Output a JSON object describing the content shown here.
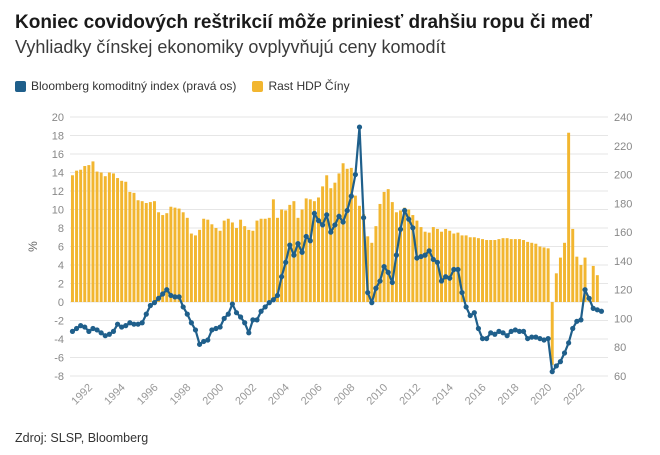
{
  "title": "Koniec covidových reštrikcií môže priniesť drahšiu ropu či meď",
  "subtitle": "Vyhliadky čínskej ekonomiky ovplyvňujú ceny komodít",
  "source": "Zdroj: SLSP, Bloomberg",
  "colors": {
    "index": "#1f5f8b",
    "gdp": "#f2b630",
    "grid": "#e6e6e6",
    "tick": "#888888"
  },
  "chart_data": {
    "type": "bar+line",
    "title": "Koniec covidových reštrikcií môže priniesť drahšiu ropu či meď",
    "subtitle": "Vyhliadky čínskej ekonomiky ovplyvňujú ceny komodít",
    "ylabel_left": "%",
    "ylim_left": [
      -8,
      20
    ],
    "yticks_left": [
      -8,
      -6,
      -4,
      -2,
      0,
      2,
      4,
      6,
      8,
      10,
      12,
      14,
      16,
      18,
      20
    ],
    "ylim_right": [
      60,
      240
    ],
    "yticks_right": [
      60,
      80,
      100,
      120,
      140,
      160,
      180,
      200,
      220,
      240
    ],
    "xlim": [
      1990.6,
      2023.4
    ],
    "xticks": [
      "1992",
      "1994",
      "1996",
      "1998",
      "2000",
      "2002",
      "2004",
      "2006",
      "2008",
      "2010",
      "2012",
      "2014",
      "2016",
      "2018",
      "2020",
      "2022"
    ],
    "grid": true,
    "legend_position": "top-left",
    "series": [
      {
        "name": "Bloomberg komoditný index (pravá os)",
        "type": "line",
        "axis": "right",
        "points": [
          [
            1990.75,
            91
          ],
          [
            1991.0,
            93
          ],
          [
            1991.25,
            95
          ],
          [
            1991.5,
            94
          ],
          [
            1991.75,
            91
          ],
          [
            1992.0,
            93
          ],
          [
            1992.25,
            92
          ],
          [
            1992.5,
            90
          ],
          [
            1992.75,
            88
          ],
          [
            1993.0,
            89
          ],
          [
            1993.25,
            91
          ],
          [
            1993.5,
            96
          ],
          [
            1993.75,
            94
          ],
          [
            1994.0,
            95
          ],
          [
            1994.25,
            97
          ],
          [
            1994.5,
            96
          ],
          [
            1994.75,
            96
          ],
          [
            1995.0,
            97
          ],
          [
            1995.25,
            103
          ],
          [
            1995.5,
            109
          ],
          [
            1995.75,
            111
          ],
          [
            1996.0,
            114
          ],
          [
            1996.25,
            117
          ],
          [
            1996.5,
            120
          ],
          [
            1996.75,
            116
          ],
          [
            1997.0,
            115
          ],
          [
            1997.25,
            115
          ],
          [
            1997.5,
            108
          ],
          [
            1997.75,
            103
          ],
          [
            1998.0,
            97
          ],
          [
            1998.25,
            92
          ],
          [
            1998.5,
            82
          ],
          [
            1998.75,
            84
          ],
          [
            1999.0,
            85
          ],
          [
            1999.25,
            92
          ],
          [
            1999.5,
            93
          ],
          [
            1999.75,
            94
          ],
          [
            2000.0,
            100
          ],
          [
            2000.25,
            103
          ],
          [
            2000.5,
            110
          ],
          [
            2000.75,
            104
          ],
          [
            2001.0,
            101
          ],
          [
            2001.25,
            97
          ],
          [
            2001.5,
            90
          ],
          [
            2001.75,
            99
          ],
          [
            2002.0,
            99
          ],
          [
            2002.25,
            105
          ],
          [
            2002.5,
            108
          ],
          [
            2002.75,
            111
          ],
          [
            2003.0,
            113
          ],
          [
            2003.25,
            116
          ],
          [
            2003.5,
            129
          ],
          [
            2003.75,
            139
          ],
          [
            2004.0,
            151
          ],
          [
            2004.25,
            144
          ],
          [
            2004.5,
            152
          ],
          [
            2004.75,
            146
          ],
          [
            2005.0,
            157
          ],
          [
            2005.25,
            154
          ],
          [
            2005.5,
            173
          ],
          [
            2005.75,
            168
          ],
          [
            2006.0,
            165
          ],
          [
            2006.25,
            172
          ],
          [
            2006.5,
            160
          ],
          [
            2006.75,
            165
          ],
          [
            2007.0,
            171
          ],
          [
            2007.25,
            167
          ],
          [
            2007.5,
            175
          ],
          [
            2007.75,
            185
          ],
          [
            2008.0,
            200
          ],
          [
            2008.25,
            233
          ],
          [
            2008.5,
            170
          ],
          [
            2008.75,
            118
          ],
          [
            2009.0,
            111
          ],
          [
            2009.25,
            121
          ],
          [
            2009.5,
            126
          ],
          [
            2009.75,
            136
          ],
          [
            2010.0,
            132
          ],
          [
            2010.25,
            125
          ],
          [
            2010.5,
            144
          ],
          [
            2010.75,
            162
          ],
          [
            2011.0,
            175
          ],
          [
            2011.25,
            169
          ],
          [
            2011.5,
            163
          ],
          [
            2011.75,
            142
          ],
          [
            2012.0,
            143
          ],
          [
            2012.25,
            144
          ],
          [
            2012.5,
            147
          ],
          [
            2012.75,
            141
          ],
          [
            2013.0,
            139
          ],
          [
            2013.25,
            126
          ],
          [
            2013.5,
            129
          ],
          [
            2013.75,
            128
          ],
          [
            2014.0,
            134
          ],
          [
            2014.25,
            134
          ],
          [
            2014.5,
            118
          ],
          [
            2014.75,
            108
          ],
          [
            2015.0,
            102
          ],
          [
            2015.25,
            104
          ],
          [
            2015.5,
            93
          ],
          [
            2015.75,
            86
          ],
          [
            2016.0,
            86
          ],
          [
            2016.25,
            90
          ],
          [
            2016.5,
            89
          ],
          [
            2016.75,
            91
          ],
          [
            2017.0,
            90
          ],
          [
            2017.25,
            88
          ],
          [
            2017.5,
            91
          ],
          [
            2017.75,
            92
          ],
          [
            2018.0,
            91
          ],
          [
            2018.25,
            91
          ],
          [
            2018.5,
            86
          ],
          [
            2018.75,
            87
          ],
          [
            2019.0,
            87
          ],
          [
            2019.25,
            86
          ],
          [
            2019.5,
            85
          ],
          [
            2019.75,
            86
          ],
          [
            2020.0,
            63
          ],
          [
            2020.25,
            67
          ],
          [
            2020.5,
            70
          ],
          [
            2020.75,
            76
          ],
          [
            2021.0,
            83
          ],
          [
            2021.25,
            93
          ],
          [
            2021.5,
            98
          ],
          [
            2021.75,
            99
          ],
          [
            2022.0,
            120
          ],
          [
            2022.25,
            114
          ],
          [
            2022.5,
            107
          ],
          [
            2022.75,
            106
          ],
          [
            2023.0,
            105
          ]
        ]
      },
      {
        "name": "Rast HDP Číny",
        "type": "bar",
        "axis": "left",
        "points": [
          [
            1990.75,
            13.7
          ],
          [
            1991.0,
            14.2
          ],
          [
            1991.25,
            14.3
          ],
          [
            1991.5,
            14.7
          ],
          [
            1991.75,
            14.8
          ],
          [
            1992.0,
            15.2
          ],
          [
            1992.25,
            14.1
          ],
          [
            1992.5,
            14.0
          ],
          [
            1992.75,
            13.6
          ],
          [
            1993.0,
            14.0
          ],
          [
            1993.25,
            13.9
          ],
          [
            1993.5,
            13.4
          ],
          [
            1993.75,
            13.1
          ],
          [
            1994.0,
            13.0
          ],
          [
            1994.25,
            11.9
          ],
          [
            1994.5,
            11.8
          ],
          [
            1994.75,
            11.0
          ],
          [
            1995.0,
            10.9
          ],
          [
            1995.25,
            10.7
          ],
          [
            1995.5,
            10.8
          ],
          [
            1995.75,
            10.9
          ],
          [
            1996.0,
            9.7
          ],
          [
            1996.25,
            9.4
          ],
          [
            1996.5,
            9.6
          ],
          [
            1996.75,
            10.3
          ],
          [
            1997.0,
            10.2
          ],
          [
            1997.25,
            10.1
          ],
          [
            1997.5,
            9.7
          ],
          [
            1997.75,
            9.1
          ],
          [
            1998.0,
            7.4
          ],
          [
            1998.25,
            7.2
          ],
          [
            1998.5,
            7.8
          ],
          [
            1998.75,
            9.0
          ],
          [
            1999.0,
            8.9
          ],
          [
            1999.25,
            8.4
          ],
          [
            1999.5,
            8.0
          ],
          [
            1999.75,
            7.7
          ],
          [
            2000.0,
            8.8
          ],
          [
            2000.25,
            9.0
          ],
          [
            2000.5,
            8.6
          ],
          [
            2000.75,
            8.0
          ],
          [
            2001.0,
            8.9
          ],
          [
            2001.25,
            8.2
          ],
          [
            2001.5,
            7.8
          ],
          [
            2001.75,
            7.7
          ],
          [
            2002.0,
            8.8
          ],
          [
            2002.25,
            9.0
          ],
          [
            2002.5,
            9.0
          ],
          [
            2002.75,
            9.1
          ],
          [
            2003.0,
            11.1
          ],
          [
            2003.25,
            9.1
          ],
          [
            2003.5,
            10.0
          ],
          [
            2003.75,
            9.9
          ],
          [
            2004.0,
            10.5
          ],
          [
            2004.25,
            10.9
          ],
          [
            2004.5,
            9.1
          ],
          [
            2004.75,
            10.0
          ],
          [
            2005.0,
            11.2
          ],
          [
            2005.25,
            11.1
          ],
          [
            2005.5,
            10.9
          ],
          [
            2005.75,
            11.3
          ],
          [
            2006.0,
            12.5
          ],
          [
            2006.25,
            13.7
          ],
          [
            2006.5,
            12.3
          ],
          [
            2006.75,
            12.9
          ],
          [
            2007.0,
            13.9
          ],
          [
            2007.25,
            15.0
          ],
          [
            2007.5,
            14.4
          ],
          [
            2007.75,
            14.5
          ],
          [
            2008.0,
            11.5
          ],
          [
            2008.25,
            10.4
          ],
          [
            2008.5,
            9.5
          ],
          [
            2008.75,
            7.1
          ],
          [
            2009.0,
            6.4
          ],
          [
            2009.25,
            8.2
          ],
          [
            2009.5,
            10.6
          ],
          [
            2009.75,
            11.9
          ],
          [
            2010.0,
            12.2
          ],
          [
            2010.25,
            10.8
          ],
          [
            2010.5,
            9.7
          ],
          [
            2010.75,
            9.9
          ],
          [
            2011.0,
            10.2
          ],
          [
            2011.25,
            10.0
          ],
          [
            2011.5,
            9.4
          ],
          [
            2011.75,
            8.8
          ],
          [
            2012.0,
            8.1
          ],
          [
            2012.25,
            7.6
          ],
          [
            2012.5,
            7.5
          ],
          [
            2012.75,
            8.1
          ],
          [
            2013.0,
            7.9
          ],
          [
            2013.25,
            7.6
          ],
          [
            2013.5,
            7.9
          ],
          [
            2013.75,
            7.7
          ],
          [
            2014.0,
            7.4
          ],
          [
            2014.25,
            7.5
          ],
          [
            2014.5,
            7.2
          ],
          [
            2014.75,
            7.2
          ],
          [
            2015.0,
            7.0
          ],
          [
            2015.25,
            7.0
          ],
          [
            2015.5,
            6.9
          ],
          [
            2015.75,
            6.8
          ],
          [
            2016.0,
            6.7
          ],
          [
            2016.25,
            6.7
          ],
          [
            2016.5,
            6.7
          ],
          [
            2016.75,
            6.8
          ],
          [
            2017.0,
            6.9
          ],
          [
            2017.25,
            6.9
          ],
          [
            2017.5,
            6.8
          ],
          [
            2017.75,
            6.8
          ],
          [
            2018.0,
            6.8
          ],
          [
            2018.25,
            6.7
          ],
          [
            2018.5,
            6.5
          ],
          [
            2018.75,
            6.4
          ],
          [
            2019.0,
            6.3
          ],
          [
            2019.25,
            6.0
          ],
          [
            2019.5,
            5.9
          ],
          [
            2019.75,
            5.8
          ],
          [
            2020.0,
            -6.8
          ],
          [
            2020.25,
            3.1
          ],
          [
            2020.5,
            4.8
          ],
          [
            2020.75,
            6.4
          ],
          [
            2021.0,
            18.3
          ],
          [
            2021.25,
            7.9
          ],
          [
            2021.5,
            4.9
          ],
          [
            2021.75,
            4.0
          ],
          [
            2022.0,
            4.8
          ],
          [
            2022.25,
            0.4
          ],
          [
            2022.5,
            3.9
          ],
          [
            2022.75,
            2.9
          ]
        ]
      }
    ]
  },
  "legend": {
    "index_label": "Bloomberg komoditný index (pravá os)",
    "gdp_label": "Rast HDP Číny"
  }
}
